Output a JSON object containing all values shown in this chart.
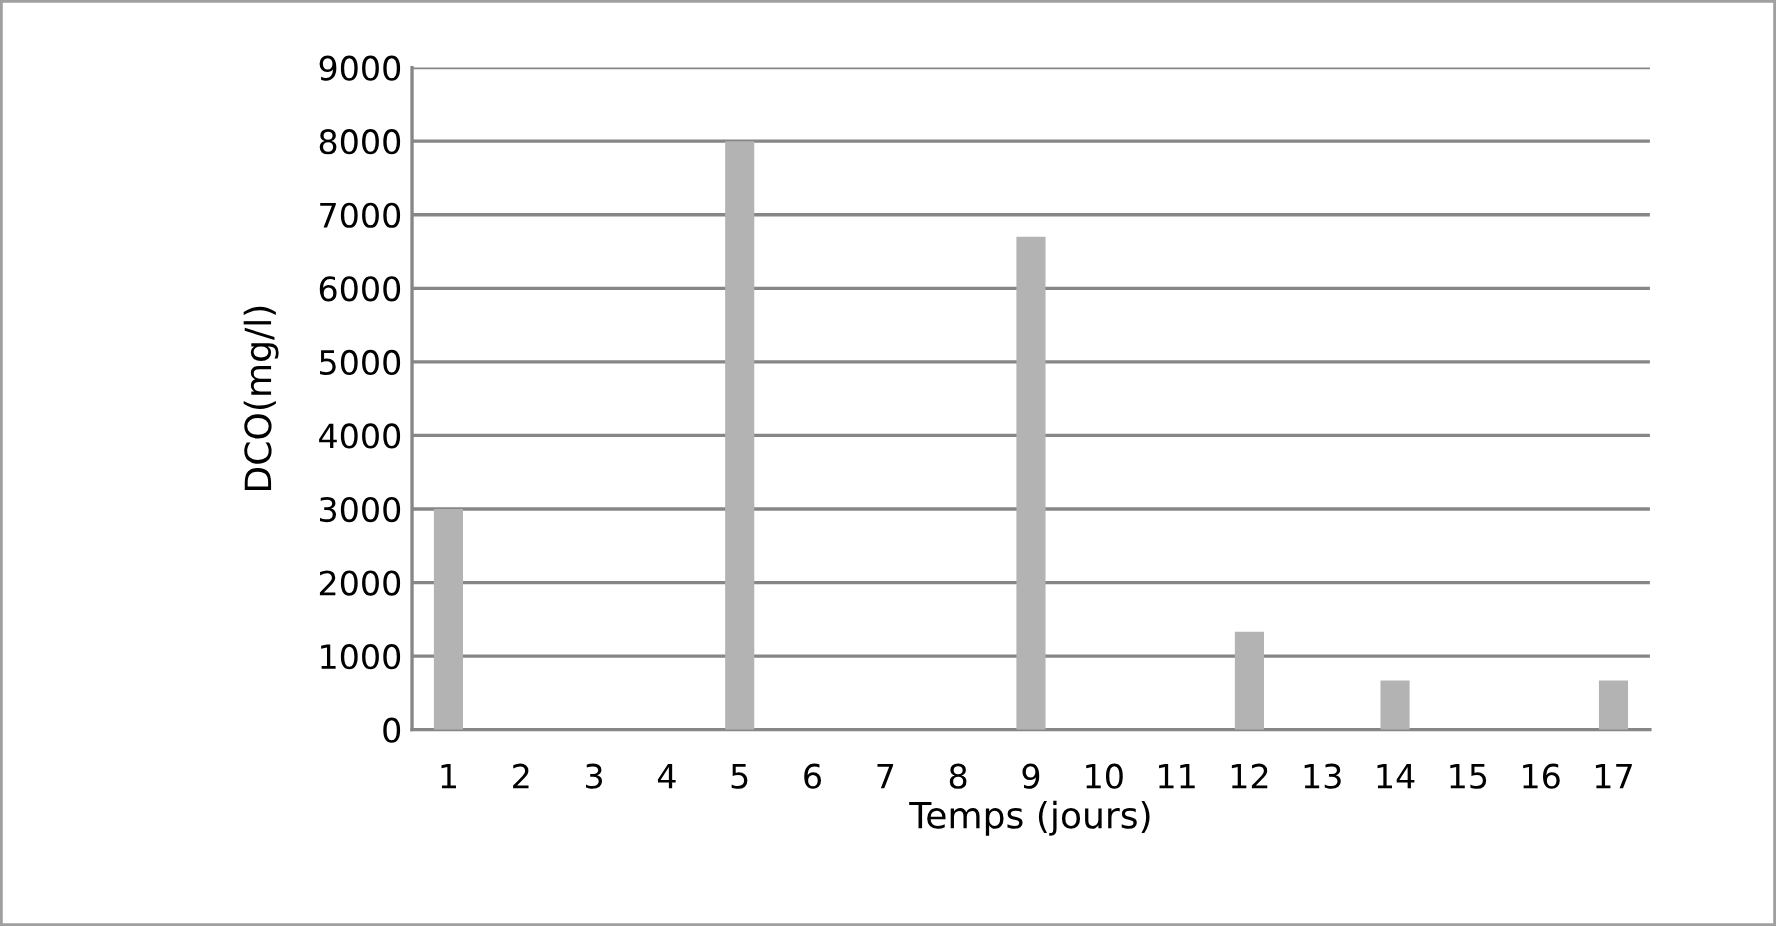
{
  "chart_data": {
    "type": "bar",
    "xlabel": "Temps (jours)",
    "ylabel": "DCO(mg/l)",
    "categories": [
      "1",
      "2",
      "3",
      "4",
      "5",
      "6",
      "7",
      "8",
      "9",
      "10",
      "11",
      "12",
      "13",
      "14",
      "15",
      "16",
      "17"
    ],
    "values": [
      3000,
      null,
      null,
      null,
      8000,
      null,
      null,
      null,
      6700,
      null,
      null,
      1330,
      null,
      670,
      null,
      null,
      670
    ],
    "color": "#b3b3b3",
    "ylim": [
      0,
      9000
    ],
    "yticks": [
      0,
      1000,
      2000,
      3000,
      4000,
      5000,
      6000,
      7000,
      8000,
      9000
    ],
    "grid": "y",
    "legend": false
  }
}
